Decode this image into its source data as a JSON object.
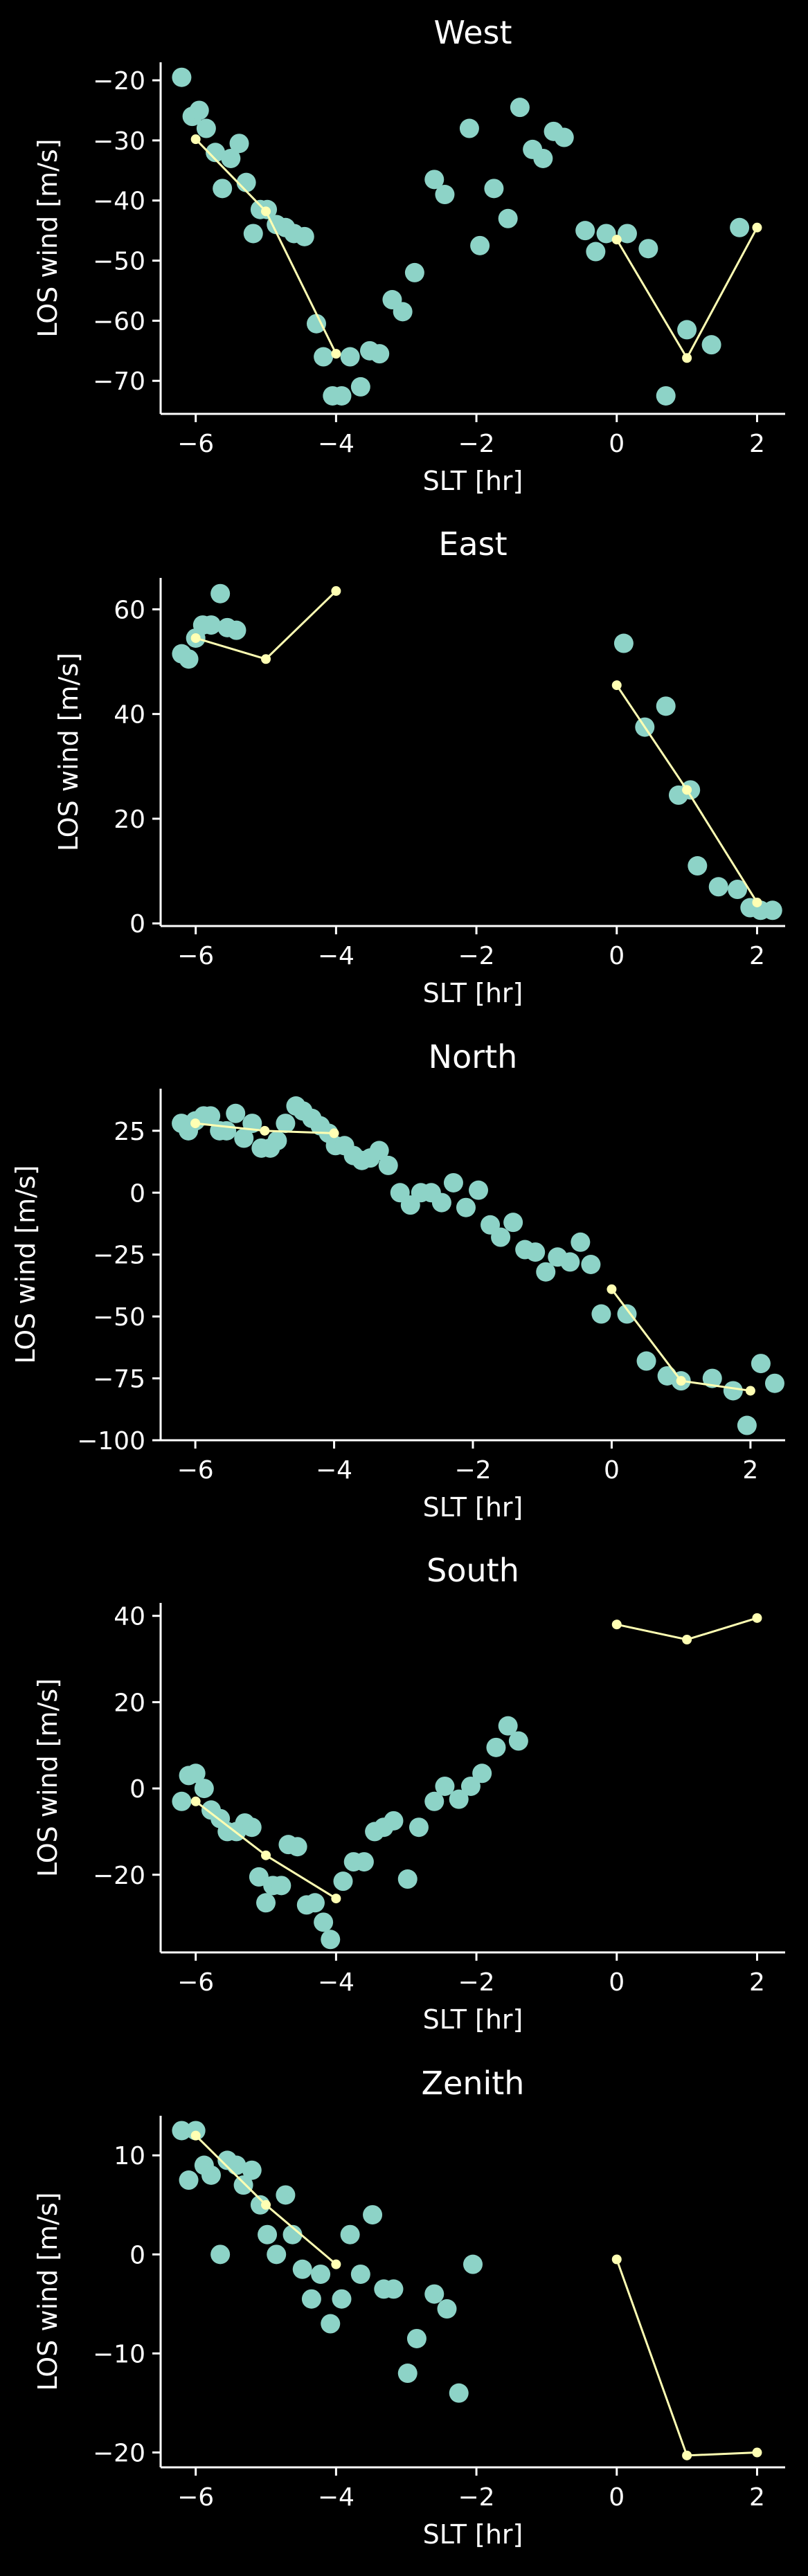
{
  "colors": {
    "background": "#000000",
    "axis": "#ffffff",
    "scatter": "#8dd3c7",
    "line": "#ffffb3"
  },
  "chart_data": [
    {
      "type": "scatter",
      "title": "West",
      "xlabel": "SLT [hr]",
      "ylabel": "LOS wind [m/s]",
      "xlim": [
        -6.5,
        2.4
      ],
      "ylim": [
        -75.5,
        -17
      ],
      "xticks": [
        -6,
        -4,
        -2,
        0,
        2
      ],
      "yticks": [
        -20,
        -30,
        -40,
        -50,
        -60,
        -70
      ],
      "tick_labels_x": [
        "−6",
        "−4",
        "−2",
        "0",
        "2"
      ],
      "tick_labels_y": [
        "−20",
        "−30",
        "−40",
        "−50",
        "−60",
        "−70"
      ],
      "grid": false,
      "legend": "none",
      "series": [
        {
          "kind": "scatter",
          "points": [
            [
              -6.2,
              -19.5
            ],
            [
              -6.05,
              -26
            ],
            [
              -5.95,
              -25
            ],
            [
              -5.85,
              -28
            ],
            [
              -5.72,
              -32
            ],
            [
              -5.62,
              -38
            ],
            [
              -5.5,
              -33
            ],
            [
              -5.38,
              -30.5
            ],
            [
              -5.28,
              -37
            ],
            [
              -5.18,
              -45.5
            ],
            [
              -5.08,
              -41.5
            ],
            [
              -4.98,
              -41.5
            ],
            [
              -4.85,
              -44
            ],
            [
              -4.72,
              -44.5
            ],
            [
              -4.6,
              -45.5
            ],
            [
              -4.45,
              -46
            ],
            [
              -4.28,
              -60.5
            ],
            [
              -4.18,
              -66
            ],
            [
              -4.05,
              -72.5
            ],
            [
              -3.92,
              -72.5
            ],
            [
              -3.8,
              -66
            ],
            [
              -3.65,
              -71
            ],
            [
              -3.52,
              -65
            ],
            [
              -3.38,
              -65.5
            ],
            [
              -3.2,
              -56.5
            ],
            [
              -3.05,
              -58.5
            ],
            [
              -2.88,
              -52
            ],
            [
              -2.6,
              -36.5
            ],
            [
              -2.45,
              -39
            ],
            [
              -2.1,
              -28
            ],
            [
              -1.95,
              -47.5
            ],
            [
              -1.75,
              -38
            ],
            [
              -1.55,
              -43
            ],
            [
              -1.38,
              -24.5
            ],
            [
              -1.2,
              -31.5
            ],
            [
              -1.05,
              -33
            ],
            [
              -0.9,
              -28.5
            ],
            [
              -0.75,
              -29.5
            ],
            [
              -0.45,
              -45
            ],
            [
              -0.3,
              -48.5
            ],
            [
              -0.15,
              -45.5
            ],
            [
              0.15,
              -45.5
            ],
            [
              0.45,
              -48
            ],
            [
              0.7,
              -72.5
            ],
            [
              1.0,
              -61.5
            ],
            [
              1.35,
              -64
            ],
            [
              1.75,
              -44.5
            ]
          ]
        },
        {
          "kind": "line",
          "points": [
            [
              -6.0,
              -29.8
            ],
            [
              -5.0,
              -41.8
            ],
            [
              -4.0,
              -65.5
            ],
            [
              0.0,
              -46.5
            ],
            [
              1.0,
              -66.2
            ],
            [
              2.0,
              -44.5
            ]
          ],
          "segments": [
            [
              0,
              1,
              2
            ],
            [
              3,
              4,
              5
            ]
          ]
        }
      ]
    },
    {
      "type": "scatter",
      "title": "East",
      "xlabel": "SLT [hr]",
      "ylabel": "LOS wind [m/s]",
      "xlim": [
        -6.5,
        2.4
      ],
      "ylim": [
        -0.5,
        66
      ],
      "xticks": [
        -6,
        -4,
        -2,
        0,
        2
      ],
      "yticks": [
        60,
        40,
        20,
        0
      ],
      "tick_labels_x": [
        "−6",
        "−4",
        "−2",
        "0",
        "2"
      ],
      "tick_labels_y": [
        "60",
        "40",
        "20",
        "0"
      ],
      "grid": false,
      "legend": "none",
      "series": [
        {
          "kind": "scatter",
          "points": [
            [
              -6.2,
              51.5
            ],
            [
              -6.1,
              50.5
            ],
            [
              -6.0,
              54.5
            ],
            [
              -5.9,
              57
            ],
            [
              -5.78,
              57
            ],
            [
              -5.65,
              63
            ],
            [
              -5.55,
              56.5
            ],
            [
              -5.42,
              56
            ],
            [
              0.1,
              53.5
            ],
            [
              0.4,
              37.5
            ],
            [
              0.7,
              41.5
            ],
            [
              0.88,
              24.5
            ],
            [
              1.05,
              25.5
            ],
            [
              1.15,
              11
            ],
            [
              1.45,
              7
            ],
            [
              1.72,
              6.5
            ],
            [
              1.9,
              3
            ],
            [
              2.05,
              2.5
            ],
            [
              2.22,
              2.5
            ]
          ]
        },
        {
          "kind": "line",
          "points": [
            [
              -6.0,
              54.5
            ],
            [
              -5.0,
              50.5
            ],
            [
              -4.0,
              63.5
            ],
            [
              0.0,
              45.5
            ],
            [
              1.0,
              25.5
            ],
            [
              2.0,
              4
            ]
          ],
          "segments": [
            [
              0,
              1,
              2
            ],
            [
              3,
              4,
              5
            ]
          ]
        }
      ]
    },
    {
      "type": "scatter",
      "title": "North",
      "xlabel": "SLT [hr]",
      "ylabel": "LOS wind [m/s]",
      "xlim": [
        -6.5,
        2.5
      ],
      "ylim": [
        -100,
        42
      ],
      "xticks": [
        -6,
        -4,
        -2,
        0,
        2
      ],
      "yticks": [
        25,
        0,
        -25,
        -50,
        -75,
        -100
      ],
      "tick_labels_x": [
        "−6",
        "−4",
        "−2",
        "0",
        "2"
      ],
      "tick_labels_y": [
        "25",
        "0",
        "−25",
        "−50",
        "−75",
        "−100"
      ],
      "grid": false,
      "legend": "none",
      "series": [
        {
          "kind": "scatter",
          "points": [
            [
              -6.2,
              28
            ],
            [
              -6.1,
              25
            ],
            [
              -6.0,
              29
            ],
            [
              -5.88,
              31
            ],
            [
              -5.78,
              31
            ],
            [
              -5.65,
              25
            ],
            [
              -5.55,
              25
            ],
            [
              -5.42,
              32
            ],
            [
              -5.3,
              22
            ],
            [
              -5.18,
              28
            ],
            [
              -5.05,
              18
            ],
            [
              -4.92,
              18
            ],
            [
              -4.82,
              21
            ],
            [
              -4.7,
              28
            ],
            [
              -4.55,
              35
            ],
            [
              -4.45,
              33
            ],
            [
              -4.32,
              30
            ],
            [
              -4.2,
              27
            ],
            [
              -4.08,
              24
            ],
            [
              -3.98,
              19
            ],
            [
              -3.85,
              19
            ],
            [
              -3.72,
              15
            ],
            [
              -3.6,
              13
            ],
            [
              -3.48,
              14
            ],
            [
              -3.35,
              17
            ],
            [
              -3.22,
              11
            ],
            [
              -3.05,
              0
            ],
            [
              -2.9,
              -5
            ],
            [
              -2.75,
              0
            ],
            [
              -2.6,
              0
            ],
            [
              -2.45,
              -4
            ],
            [
              -2.28,
              4
            ],
            [
              -2.1,
              -6
            ],
            [
              -1.92,
              1
            ],
            [
              -1.75,
              -13
            ],
            [
              -1.6,
              -18
            ],
            [
              -1.42,
              -12
            ],
            [
              -1.25,
              -23
            ],
            [
              -1.1,
              -24
            ],
            [
              -0.95,
              -32
            ],
            [
              -0.78,
              -26
            ],
            [
              -0.6,
              -28
            ],
            [
              -0.45,
              -20
            ],
            [
              -0.3,
              -29
            ],
            [
              -0.15,
              -49
            ],
            [
              0.22,
              -49
            ],
            [
              0.5,
              -68
            ],
            [
              0.8,
              -74
            ],
            [
              1.0,
              -76
            ],
            [
              1.45,
              -75
            ],
            [
              1.75,
              -80
            ],
            [
              1.95,
              -94
            ],
            [
              2.15,
              -69
            ],
            [
              2.35,
              -77
            ]
          ]
        },
        {
          "kind": "line",
          "points": [
            [
              -6.0,
              28
            ],
            [
              -5.0,
              25
            ],
            [
              -4.0,
              24
            ],
            [
              0.0,
              -39
            ],
            [
              1.0,
              -76
            ],
            [
              2.0,
              -80
            ]
          ],
          "segments": [
            [
              0,
              1,
              2
            ],
            [
              3,
              4,
              5
            ]
          ]
        }
      ]
    },
    {
      "type": "scatter",
      "title": "South",
      "xlabel": "SLT [hr]",
      "ylabel": "LOS wind [m/s]",
      "xlim": [
        -6.5,
        2.4
      ],
      "ylim": [
        -38,
        43
      ],
      "xticks": [
        -6,
        -4,
        -2,
        0,
        2
      ],
      "yticks": [
        40,
        20,
        0,
        -20
      ],
      "tick_labels_x": [
        "−6",
        "−4",
        "−2",
        "0",
        "2"
      ],
      "tick_labels_y": [
        "40",
        "20",
        "0",
        "−20"
      ],
      "grid": false,
      "legend": "none",
      "series": [
        {
          "kind": "scatter",
          "points": [
            [
              -6.2,
              -3
            ],
            [
              -6.1,
              3
            ],
            [
              -6.0,
              3.5
            ],
            [
              -5.88,
              0
            ],
            [
              -5.78,
              -5
            ],
            [
              -5.65,
              -7
            ],
            [
              -5.55,
              -10
            ],
            [
              -5.42,
              -10
            ],
            [
              -5.3,
              -8
            ],
            [
              -5.2,
              -9
            ],
            [
              -5.1,
              -20.5
            ],
            [
              -5.0,
              -26.5
            ],
            [
              -4.9,
              -22.5
            ],
            [
              -4.78,
              -22.5
            ],
            [
              -4.68,
              -13
            ],
            [
              -4.55,
              -13.5
            ],
            [
              -4.42,
              -27
            ],
            [
              -4.3,
              -26.5
            ],
            [
              -4.18,
              -31
            ],
            [
              -4.08,
              -35
            ],
            [
              -3.9,
              -21.5
            ],
            [
              -3.75,
              -17
            ],
            [
              -3.6,
              -17
            ],
            [
              -3.45,
              -10
            ],
            [
              -3.32,
              -9
            ],
            [
              -3.18,
              -7.5
            ],
            [
              -2.98,
              -21
            ],
            [
              -2.82,
              -9
            ],
            [
              -2.6,
              -3
            ],
            [
              -2.45,
              0.5
            ],
            [
              -2.25,
              -2.5
            ],
            [
              -2.08,
              0.5
            ],
            [
              -1.92,
              3.5
            ],
            [
              -1.72,
              9.5
            ],
            [
              -1.55,
              14.5
            ],
            [
              -1.4,
              11
            ]
          ]
        },
        {
          "kind": "line",
          "points": [
            [
              -6.0,
              -3
            ],
            [
              -5.0,
              -15.5
            ],
            [
              -4.0,
              -25.5
            ],
            [
              0.0,
              38
            ],
            [
              1.0,
              34.5
            ],
            [
              2.0,
              39.5
            ]
          ],
          "segments": [
            [
              0,
              1,
              2
            ],
            [
              3,
              4,
              5
            ]
          ]
        }
      ]
    },
    {
      "type": "scatter",
      "title": "Zenith",
      "xlabel": "SLT [hr]",
      "ylabel": "LOS wind [m/s]",
      "xlim": [
        -6.5,
        2.4
      ],
      "ylim": [
        -21.5,
        14
      ],
      "xticks": [
        -6,
        -4,
        -2,
        0,
        2
      ],
      "yticks": [
        10,
        0,
        -10,
        -20
      ],
      "tick_labels_x": [
        "−6",
        "−4",
        "−2",
        "0",
        "2"
      ],
      "tick_labels_y": [
        "10",
        "0",
        "−10",
        "−20"
      ],
      "grid": false,
      "legend": "none",
      "series": [
        {
          "kind": "scatter",
          "points": [
            [
              -6.2,
              12.5
            ],
            [
              -6.1,
              7.5
            ],
            [
              -6.0,
              12.5
            ],
            [
              -5.88,
              9
            ],
            [
              -5.78,
              8
            ],
            [
              -5.65,
              0
            ],
            [
              -5.55,
              9.5
            ],
            [
              -5.42,
              9
            ],
            [
              -5.32,
              7
            ],
            [
              -5.2,
              8.5
            ],
            [
              -5.08,
              5
            ],
            [
              -4.98,
              2
            ],
            [
              -4.85,
              0
            ],
            [
              -4.72,
              6
            ],
            [
              -4.62,
              2
            ],
            [
              -4.48,
              -1.5
            ],
            [
              -4.35,
              -4.5
            ],
            [
              -4.22,
              -2
            ],
            [
              -4.08,
              -7
            ],
            [
              -3.92,
              -4.5
            ],
            [
              -3.8,
              2
            ],
            [
              -3.65,
              -2
            ],
            [
              -3.48,
              4
            ],
            [
              -3.32,
              -3.5
            ],
            [
              -3.18,
              -3.5
            ],
            [
              -2.98,
              -12
            ],
            [
              -2.85,
              -8.5
            ],
            [
              -2.6,
              -4
            ],
            [
              -2.42,
              -5.5
            ],
            [
              -2.25,
              -14
            ],
            [
              -2.05,
              -1
            ]
          ]
        },
        {
          "kind": "line",
          "points": [
            [
              -6.0,
              12
            ],
            [
              -5.0,
              5
            ],
            [
              -4.0,
              -1
            ],
            [
              0.0,
              -0.5
            ],
            [
              1.0,
              -20.3
            ],
            [
              2.0,
              -20
            ]
          ],
          "segments": [
            [
              0,
              1,
              2
            ],
            [
              3,
              4,
              5
            ]
          ]
        }
      ]
    }
  ]
}
